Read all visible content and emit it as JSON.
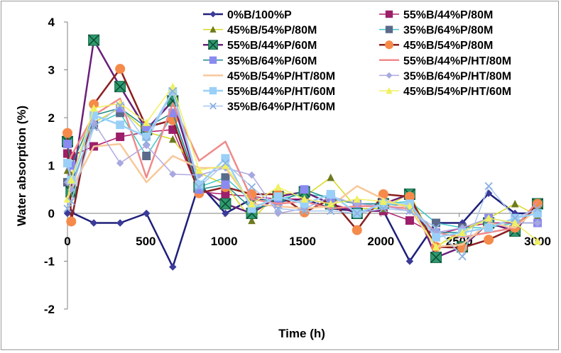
{
  "chart_data": {
    "type": "line",
    "title": "",
    "xlabel": "Time (h)",
    "ylabel": "Water absorption (%)",
    "xlim": [
      0,
      3000
    ],
    "ylim": [
      -2,
      4
    ],
    "xticks": [
      0,
      500,
      1000,
      1500,
      2000,
      2500,
      3000
    ],
    "yticks": [
      -2,
      -1,
      0,
      1,
      2,
      3,
      4
    ],
    "x_tick_labels": [
      "0",
      "500",
      "1000",
      "1500",
      "2000",
      "2500",
      "3000"
    ],
    "y_tick_labels": [
      "-2",
      "-1",
      "0",
      "1",
      "2",
      "3",
      "4"
    ],
    "x": [
      0,
      24,
      168,
      336,
      504,
      672,
      840,
      1008,
      1176,
      1344,
      1512,
      1680,
      1848,
      2016,
      2184,
      2352,
      2520,
      2688,
      2856,
      3000
    ],
    "legend_position": "top-right",
    "series": [
      {
        "name": "0%B/100%P",
        "color": "#1f1f7a",
        "marker": "diamond",
        "marker_color": "#3b3b9a",
        "line_width": 2.5,
        "values": [
          0.0,
          0.02,
          -0.2,
          -0.2,
          0.0,
          -1.12,
          0.62,
          0.0,
          0.3,
          0.25,
          0.3,
          0.1,
          0.05,
          0.05,
          -1.0,
          -0.2,
          -0.2,
          0.42,
          0.0,
          0.0
        ]
      },
      {
        "name": "55%B/44%P/80M",
        "color": "#b01e6e",
        "marker": "square",
        "marker_color": "#9c1f6a",
        "line_width": 1.5,
        "values": [
          1.25,
          1.2,
          1.4,
          1.6,
          1.7,
          1.75,
          0.45,
          0.4,
          0.35,
          0.3,
          0.3,
          0.2,
          0.05,
          0.05,
          -0.15,
          -0.45,
          -0.3,
          -0.2,
          -0.2,
          0.05
        ]
      },
      {
        "name": "45%B/54%P/80M",
        "color": "#d8d820",
        "marker": "triangle",
        "marker_color": "#6e7a1f",
        "line_width": 1.5,
        "values": [
          0.9,
          0.8,
          1.9,
          2.2,
          1.7,
          1.55,
          0.85,
          0.6,
          -0.15,
          0.45,
          0.35,
          0.75,
          0.1,
          0.1,
          0.42,
          -0.7,
          -0.35,
          -0.1,
          0.2,
          -0.05
        ]
      },
      {
        "name": "35%B/64%P/80M",
        "color": "#3ec8c8",
        "marker": "square",
        "marker_color": "#5a6a8a",
        "line_width": 1.5,
        "values": [
          0.65,
          0.6,
          1.85,
          2.1,
          1.2,
          2.05,
          0.55,
          0.75,
          0.25,
          0.3,
          0.4,
          0.35,
          0.2,
          0.2,
          0.25,
          -0.2,
          -0.3,
          -0.3,
          -0.2,
          0.05
        ]
      },
      {
        "name": "55%B/44%P/60M",
        "color": "#6a1f7a",
        "marker": "xsquare",
        "marker_color": "#2e9a6e",
        "line_width": 2.5,
        "values": [
          1.5,
          0.45,
          3.62,
          2.65,
          1.75,
          2.35,
          0.55,
          0.2,
          0.0,
          0.35,
          0.45,
          0.2,
          0.0,
          0.2,
          0.4,
          -0.92,
          -0.7,
          -0.2,
          -0.37,
          0.2
        ]
      },
      {
        "name": "45%B/54%P/80M",
        "color": "#8a1f1f",
        "marker": "circle",
        "marker_color": "#f58a4a",
        "line_width": 2.5,
        "values": [
          1.68,
          -0.17,
          2.28,
          3.02,
          1.8,
          1.95,
          0.42,
          0.55,
          0.4,
          0.4,
          0.02,
          0.3,
          -0.35,
          0.4,
          0.35,
          -0.7,
          -0.72,
          -0.55,
          -0.3,
          0.2
        ]
      },
      {
        "name": "35%B/64%P/60M",
        "color": "#1f8a8a",
        "marker": "square",
        "marker_color": "#8a8af0",
        "line_width": 1.5,
        "values": [
          1.45,
          1.0,
          2.05,
          2.2,
          1.8,
          2.1,
          0.5,
          0.6,
          0.1,
          0.2,
          0.5,
          0.3,
          0.2,
          0.2,
          0.15,
          -0.4,
          -0.4,
          -0.1,
          -0.2,
          -0.2
        ]
      },
      {
        "name": "55%B/44%P/HT/80M",
        "color": "#f08a8a",
        "marker": "none",
        "marker_color": "#f08a8a",
        "line_width": 2.5,
        "values": [
          1.0,
          1.2,
          2.05,
          2.4,
          0.75,
          2.3,
          1.1,
          1.5,
          0.3,
          0.2,
          0.25,
          0.1,
          0.15,
          0.15,
          0.1,
          -0.4,
          -0.5,
          -0.4,
          -0.3,
          0.25
        ]
      },
      {
        "name": "45%B/54%P/HT/80M",
        "color": "#f8c89a",
        "marker": "none",
        "marker_color": "#f8c89a",
        "line_width": 2.5,
        "values": [
          0.3,
          0.5,
          1.4,
          1.45,
          0.65,
          1.2,
          0.95,
          0.95,
          0.2,
          0.15,
          0.1,
          0.15,
          0.57,
          0.3,
          0.1,
          -0.7,
          -0.65,
          -0.2,
          -0.3,
          0.1
        ]
      },
      {
        "name": "35%B/64%P/HT/80M",
        "color": "#b0a8e0",
        "marker": "diamond",
        "marker_color": "#a8a8e0",
        "line_width": 1.5,
        "values": [
          0.65,
          0.5,
          1.9,
          1.05,
          1.42,
          0.82,
          0.8,
          0.95,
          0.8,
          0.0,
          0.1,
          0.35,
          0.2,
          0.15,
          0.05,
          -0.4,
          -0.3,
          -0.1,
          -0.2,
          -0.2
        ]
      },
      {
        "name": "55%B/44%P/HT/60M",
        "color": "#9ad0f8",
        "marker": "square",
        "marker_color": "#9ad0f8",
        "line_width": 2.5,
        "values": [
          1.05,
          0.7,
          2.05,
          1.85,
          1.6,
          2.55,
          0.6,
          1.15,
          0.1,
          0.35,
          0.2,
          0.4,
          0.0,
          0.2,
          0.2,
          -0.5,
          -0.4,
          -0.3,
          -0.1,
          0.0
        ]
      },
      {
        "name": "45%B/54%P/HT/60M",
        "color": "#f0f060",
        "marker": "triangle",
        "marker_color": "#f0f060",
        "line_width": 1.5,
        "values": [
          0.3,
          0.7,
          2.2,
          2.3,
          1.9,
          2.65,
          0.9,
          1.0,
          0.2,
          0.55,
          0.3,
          0.2,
          0.3,
          0.25,
          0.15,
          -0.7,
          -0.4,
          -0.1,
          -0.2,
          -0.58
        ]
      },
      {
        "name": "35%B/64%P/HT/60M",
        "color": "#a8c8f0",
        "marker": "cross",
        "marker_color": "#8ab0e0",
        "line_width": 1.5,
        "values": [
          0.1,
          0.25,
          1.8,
          2.25,
          1.5,
          2.55,
          0.55,
          1.05,
          0.55,
          0.1,
          0.05,
          0.05,
          0.0,
          0.1,
          0.05,
          -0.3,
          -0.9,
          0.57,
          -0.1,
          0.1
        ]
      }
    ]
  }
}
